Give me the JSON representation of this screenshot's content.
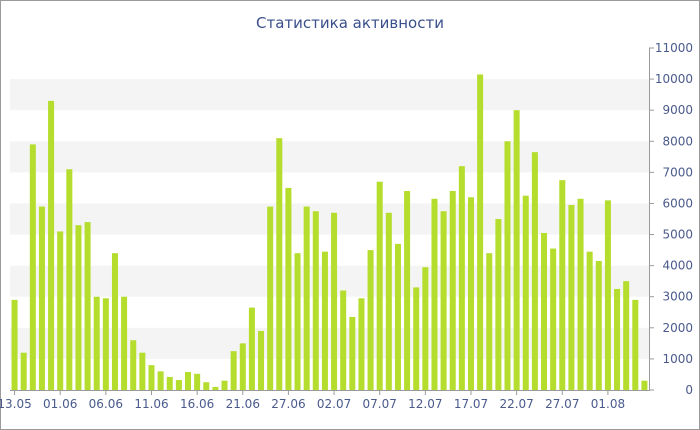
{
  "chart_data": {
    "type": "bar",
    "title": "Статистика активности",
    "xlabel": "",
    "ylabel": "",
    "ylim": [
      0,
      11000
    ],
    "y_ticks": [
      0,
      1000,
      2000,
      3000,
      4000,
      5000,
      6000,
      7000,
      8000,
      9000,
      10000,
      11000
    ],
    "y_axis_position": "right",
    "x_tick_labels": [
      "13.05",
      "01.06",
      "06.06",
      "11.06",
      "16.06",
      "21.06",
      "27.06",
      "02.07",
      "07.07",
      "12.07",
      "17.07",
      "22.07",
      "27.07",
      "01.08"
    ],
    "x_tick_label_indices": [
      0,
      5,
      10,
      15,
      20,
      25,
      30,
      35,
      40,
      45,
      50,
      55,
      60,
      65
    ],
    "grid": "horizontal alternating bands",
    "bar_color": "#b5dd2e",
    "values": [
      2900,
      1200,
      7900,
      5900,
      9300,
      5100,
      7100,
      5300,
      5400,
      3000,
      2950,
      4400,
      3000,
      1600,
      1200,
      800,
      600,
      420,
      320,
      580,
      520,
      250,
      100,
      300,
      1250,
      1500,
      2650,
      1900,
      5900,
      8100,
      6500,
      4400,
      5900,
      5750,
      4450,
      5700,
      3200,
      2350,
      2950,
      4500,
      6700,
      5700,
      4700,
      6400,
      3300,
      3950,
      6150,
      5750,
      6400,
      7200,
      6200,
      10150,
      4400,
      5500,
      8000,
      9000,
      6250,
      7650,
      5050,
      4550,
      6750,
      5950,
      6150,
      4450,
      4150,
      6100,
      3250,
      3500,
      2900,
      300
    ]
  },
  "colors": {
    "band": "#f4f4f4",
    "axis": "#9a9a9a",
    "text": "#4a5a8c",
    "title": "#3a4f8c"
  }
}
